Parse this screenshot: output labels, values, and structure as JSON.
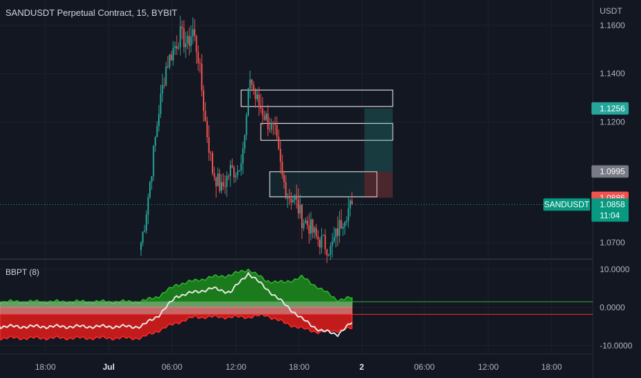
{
  "header": {
    "title": "SANDUSDT Perpetual Contract, 15, BYBIT",
    "currency": "USDT"
  },
  "indicator": {
    "title": "BBPT (8)"
  },
  "colors": {
    "background": "#131722",
    "up": "#26a69a",
    "down": "#ef5350",
    "bull_fill": "#1b7a1b",
    "bear_fill": "#c21b1b",
    "axis_text": "#d1d4dc",
    "grid": "#1e222d"
  },
  "chart_data": [
    {
      "type": "candlestick",
      "title": "SANDUSDT Perpetual Contract, 15, BYBIT",
      "ylabel": "USDT",
      "ylim": [
        1.0635,
        1.1705
      ],
      "x_ticks": [
        "18:00",
        "Jul",
        "06:00",
        "12:00",
        "18:00",
        "2",
        "06:00",
        "12:00",
        "18:00"
      ],
      "y_ticks": [
        "1.1600",
        "1.1400",
        "1.1200",
        "1.0700"
      ],
      "price_labels": [
        {
          "value": "1.1256",
          "color": "#26a69a"
        },
        {
          "value": "1.0995",
          "color": "#787b86"
        },
        {
          "value": "1.0886",
          "color": "#ef5350"
        },
        {
          "value": "1.0858",
          "color": "#089981",
          "symbol": "SANDUSDT",
          "countdown": "11:04"
        }
      ],
      "zones": [
        {
          "top": 1.1332,
          "bottom": 1.1264
        },
        {
          "top": 1.1194,
          "bottom": 1.1124
        },
        {
          "top": 1.0994,
          "bottom": 1.089
        }
      ],
      "position": {
        "entry": 1.0994,
        "target": 1.1256,
        "stop": 1.0886
      },
      "anchor_closes": [
        {
          "bar": 0,
          "value": 1.07
        },
        {
          "bar": 2,
          "value": 1.078
        },
        {
          "bar": 5,
          "value": 1.095
        },
        {
          "bar": 10,
          "value": 1.125
        },
        {
          "bar": 14,
          "value": 1.143
        },
        {
          "bar": 18,
          "value": 1.15
        },
        {
          "bar": 22,
          "value": 1.156
        },
        {
          "bar": 26,
          "value": 1.152
        },
        {
          "bar": 29,
          "value": 1.158
        },
        {
          "bar": 32,
          "value": 1.147
        },
        {
          "bar": 36,
          "value": 1.12
        },
        {
          "bar": 40,
          "value": 1.1
        },
        {
          "bar": 45,
          "value": 1.092
        },
        {
          "bar": 50,
          "value": 1.1
        },
        {
          "bar": 54,
          "value": 1.1
        },
        {
          "bar": 58,
          "value": 1.113
        },
        {
          "bar": 61,
          "value": 1.139
        },
        {
          "bar": 64,
          "value": 1.13
        },
        {
          "bar": 67,
          "value": 1.126
        },
        {
          "bar": 71,
          "value": 1.12
        },
        {
          "bar": 75,
          "value": 1.115
        },
        {
          "bar": 79,
          "value": 1.097
        },
        {
          "bar": 82,
          "value": 1.09
        },
        {
          "bar": 86,
          "value": 1.088
        },
        {
          "bar": 90,
          "value": 1.08
        },
        {
          "bar": 94,
          "value": 1.077
        },
        {
          "bar": 98,
          "value": 1.072
        },
        {
          "bar": 102,
          "value": 1.07
        },
        {
          "bar": 106,
          "value": 1.067
        },
        {
          "bar": 110,
          "value": 1.075
        },
        {
          "bar": 114,
          "value": 1.082
        },
        {
          "bar": 118,
          "value": 1.0858
        }
      ]
    },
    {
      "type": "area",
      "title": "BBPT (8)",
      "ylim": [
        -12,
        12.5
      ],
      "y_ticks": [
        "10.0000",
        "0.0000",
        "-10.0000"
      ],
      "series": [
        {
          "role": "bull",
          "x": [
            0,
            10,
            20,
            30,
            40,
            50,
            60,
            70,
            80,
            90,
            100,
            110,
            118
          ],
          "values": [
            1.5,
            3,
            6,
            7,
            8,
            8.5,
            10,
            7,
            6.5,
            8,
            5,
            2,
            2.5
          ]
        },
        {
          "role": "bear",
          "x": [
            0,
            10,
            20,
            30,
            40,
            50,
            60,
            70,
            80,
            90,
            100,
            110,
            118
          ],
          "values": [
            -8,
            -6,
            -4,
            -2.5,
            -2.5,
            -2.5,
            -2.5,
            -2,
            -4,
            -5.5,
            -6.5,
            -6,
            -5.5
          ]
        },
        {
          "role": "power",
          "x": [
            0,
            10,
            20,
            30,
            40,
            50,
            60,
            70,
            80,
            90,
            100,
            110,
            118
          ],
          "values": [
            -5,
            -2,
            3,
            4,
            5,
            4,
            9,
            5,
            1,
            -3,
            -6,
            -7,
            -4
          ]
        }
      ],
      "levels": [
        1.5,
        -1.8
      ]
    }
  ]
}
